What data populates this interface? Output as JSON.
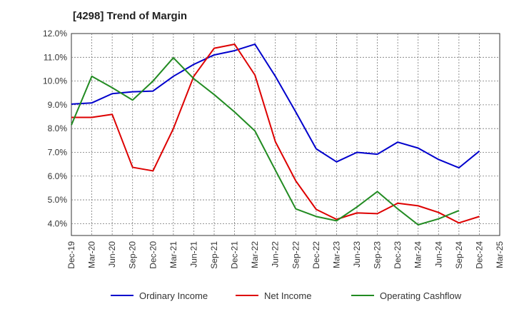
{
  "chart_data": {
    "type": "line",
    "title": "[4298]  Trend of Margin",
    "xlabel": "",
    "ylabel": "",
    "categories": [
      "Dec-19",
      "Mar-20",
      "Jun-20",
      "Sep-20",
      "Dec-20",
      "Mar-21",
      "Jun-21",
      "Sep-21",
      "Dec-21",
      "Mar-22",
      "Jun-22",
      "Sep-22",
      "Dec-22",
      "Mar-23",
      "Jun-23",
      "Sep-23",
      "Dec-23",
      "Mar-24",
      "Jun-24",
      "Sep-24",
      "Dec-24",
      "Mar-25"
    ],
    "yticks": [
      "4.0%",
      "5.0%",
      "6.0%",
      "7.0%",
      "8.0%",
      "9.0%",
      "10.0%",
      "11.0%",
      "12.0%"
    ],
    "ylim": [
      3.5,
      12.0
    ],
    "grid": true,
    "legend_position": "bottom",
    "series": [
      {
        "name": "Ordinary Income",
        "color": "#0000cc",
        "values": [
          9.03,
          9.08,
          9.47,
          9.55,
          9.58,
          10.2,
          10.7,
          11.1,
          11.28,
          11.55,
          10.2,
          8.7,
          7.15,
          6.6,
          7.0,
          6.92,
          7.43,
          7.18,
          6.7,
          6.35,
          7.05,
          null
        ]
      },
      {
        "name": "Net Income",
        "color": "#dd0000",
        "values": [
          8.47,
          8.47,
          8.6,
          6.37,
          6.22,
          8.0,
          10.2,
          11.38,
          11.55,
          10.25,
          7.45,
          5.8,
          4.6,
          4.18,
          4.45,
          4.42,
          4.86,
          4.75,
          4.47,
          4.03,
          4.3,
          null
        ]
      },
      {
        "name": "Operating Cashflow",
        "color": "#228b22",
        "values": [
          8.15,
          10.2,
          9.72,
          9.2,
          10.0,
          10.98,
          10.1,
          9.43,
          8.7,
          7.9,
          6.25,
          4.62,
          4.3,
          4.12,
          4.7,
          5.35,
          4.62,
          3.95,
          4.2,
          4.55,
          null,
          null
        ]
      }
    ]
  }
}
